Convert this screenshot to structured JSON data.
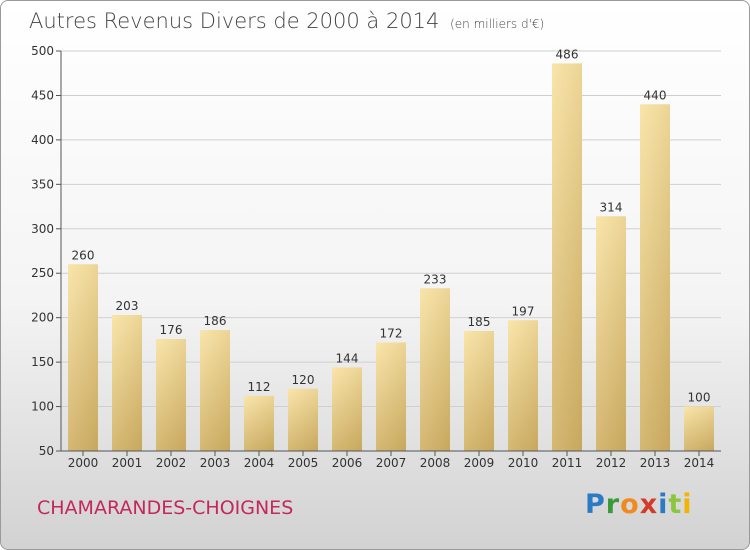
{
  "title": "Autres Revenus Divers de 2000 à 2014",
  "title_unit": "(en milliers d'€)",
  "commune": "CHAMARANDES-CHOIGNES",
  "logo": "Proxiti",
  "colors": {
    "bar_light": "#f7e0a0",
    "bar_dark": "#c9aa62",
    "commune": "#c4285a"
  },
  "chart_data": {
    "type": "bar",
    "title": "Autres Revenus Divers de 2000 à 2014",
    "subtitle": "(en milliers d'€)",
    "categories": [
      "2000",
      "2001",
      "2002",
      "2003",
      "2004",
      "2005",
      "2006",
      "2007",
      "2008",
      "2009",
      "2010",
      "2011",
      "2012",
      "2013",
      "2014"
    ],
    "values": [
      260,
      203,
      176,
      186,
      112,
      120,
      144,
      172,
      233,
      185,
      197,
      486,
      314,
      440,
      100
    ],
    "ylim": [
      50,
      500
    ],
    "yticks": [
      50,
      100,
      150,
      200,
      250,
      300,
      350,
      400,
      450,
      500
    ],
    "grid": true,
    "data_labels": true
  }
}
